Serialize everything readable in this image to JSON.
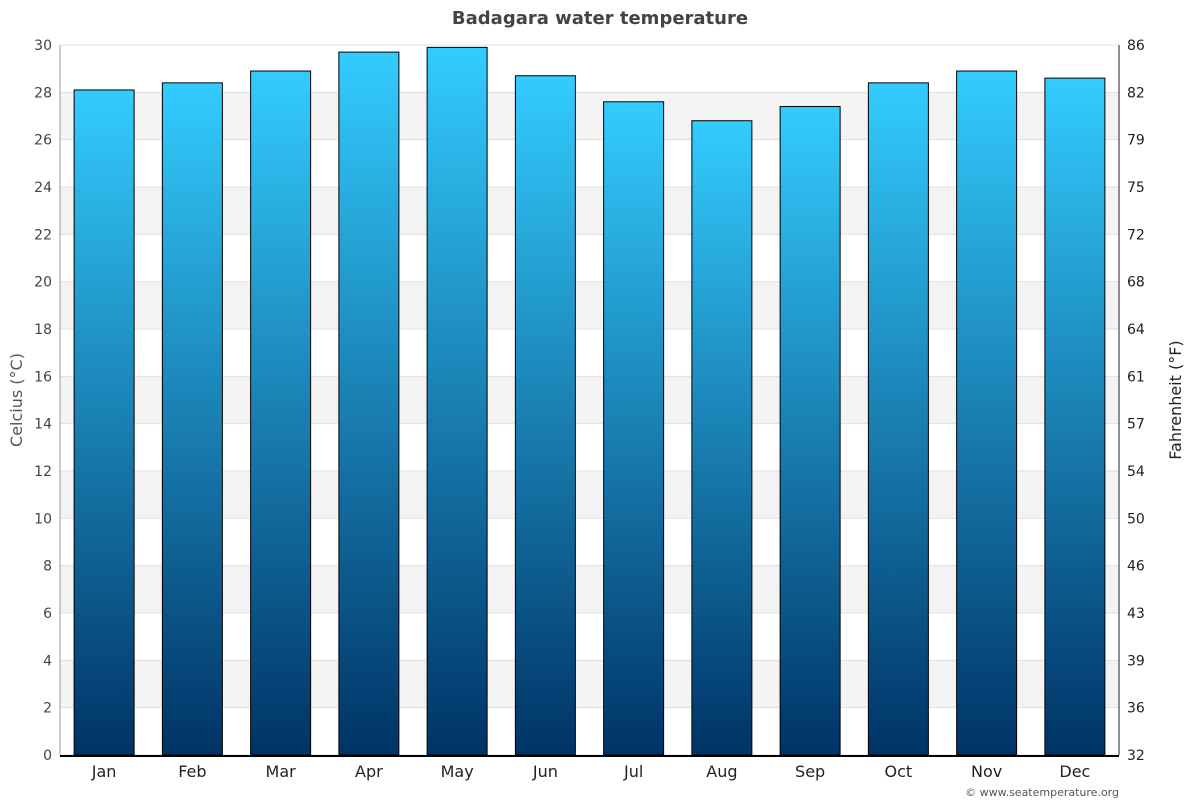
{
  "chart_data": {
    "type": "bar",
    "title": "Badagara water temperature",
    "ylabel": "Celcius (°C)",
    "ylabel_right": "Fahrenheit (°F)",
    "ylim": [
      0,
      30
    ],
    "yticks": [
      0,
      2,
      4,
      6,
      8,
      10,
      12,
      14,
      16,
      18,
      20,
      22,
      24,
      26,
      28,
      30
    ],
    "yticks_right": [
      "32",
      "36",
      "39",
      "43",
      "46",
      "50",
      "54",
      "57",
      "61",
      "64",
      "68",
      "72",
      "75",
      "79",
      "82",
      "86"
    ],
    "categories": [
      "Jan",
      "Feb",
      "Mar",
      "Apr",
      "May",
      "Jun",
      "Jul",
      "Aug",
      "Sep",
      "Oct",
      "Nov",
      "Dec"
    ],
    "values": [
      28.1,
      28.4,
      28.9,
      29.7,
      29.9,
      28.7,
      27.6,
      26.8,
      27.4,
      28.4,
      28.9,
      28.6
    ],
    "grid": true,
    "colors": {
      "bar_top": "#33ccff",
      "bar_bottom": "#003366",
      "band": "#f3f3f3"
    }
  },
  "credit": "© www.seatemperature.org"
}
